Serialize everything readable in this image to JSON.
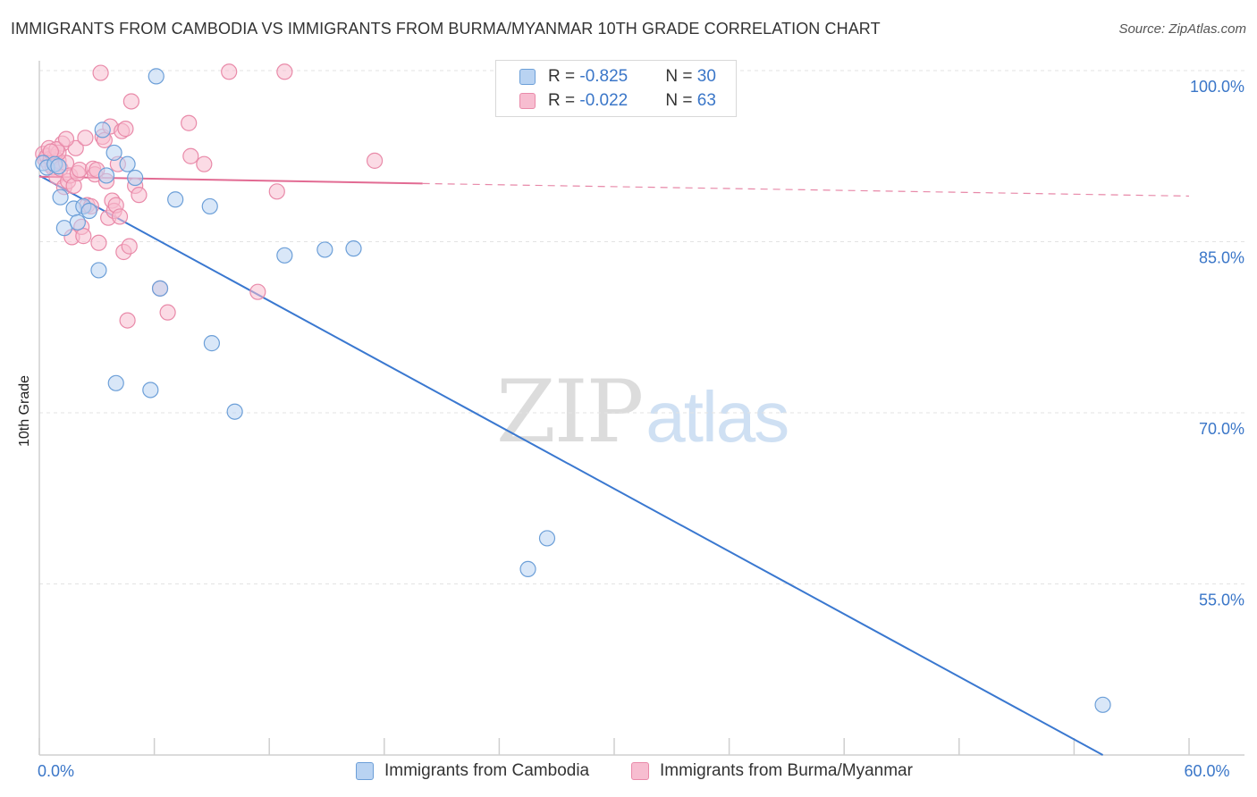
{
  "title": "IMMIGRANTS FROM CAMBODIA VS IMMIGRANTS FROM BURMA/MYANMAR 10TH GRADE CORRELATION CHART",
  "source": "Source: ZipAtlas.com",
  "watermark": {
    "zip": "ZIP",
    "atlas": "atlas"
  },
  "legend": {
    "rows": [
      {
        "r_label": "R = ",
        "r_value": "-0.825",
        "n_label": "N = ",
        "n_value": "30"
      },
      {
        "r_label": "R = ",
        "r_value": "-0.022",
        "n_label": "N = ",
        "n_value": "63"
      }
    ]
  },
  "colors": {
    "cambodia_fill": "#b9d3f2",
    "cambodia_stroke": "#6c9fd8",
    "cambodia_line": "#3a78d0",
    "burma_fill": "#f7bdd0",
    "burma_stroke": "#e98aa9",
    "burma_line": "#e26b93",
    "axis_label": "#3a76c8",
    "grid": "#e3e3e3"
  },
  "chart_data": {
    "type": "scatter",
    "title": "IMMIGRANTS FROM CAMBODIA VS IMMIGRANTS FROM BURMA/MYANMAR 10TH GRADE CORRELATION CHART",
    "xlabel": "",
    "ylabel": "10th Grade",
    "xlim": [
      0,
      60
    ],
    "ylim": [
      40,
      100
    ],
    "x_tick_labels": [
      {
        "value": 0,
        "label": "0.0%"
      },
      {
        "value": 60,
        "label": "60.0%"
      }
    ],
    "y_tick_labels": [
      {
        "value": 100,
        "label": "100.0%"
      },
      {
        "value": 85,
        "label": "85.0%"
      },
      {
        "value": 70,
        "label": "70.0%"
      },
      {
        "value": 55,
        "label": "55.0%"
      }
    ],
    "series": [
      {
        "name": "Immigrants from Cambodia",
        "color": "#6c9fd8",
        "points": [
          [
            0.2,
            91.9
          ],
          [
            0.4,
            91.5
          ],
          [
            0.8,
            91.8
          ],
          [
            1.0,
            91.6
          ],
          [
            1.1,
            88.9
          ],
          [
            1.3,
            86.2
          ],
          [
            1.8,
            87.9
          ],
          [
            2.0,
            86.7
          ],
          [
            2.3,
            88.1
          ],
          [
            2.6,
            87.7
          ],
          [
            3.1,
            82.5
          ],
          [
            3.3,
            94.8
          ],
          [
            3.5,
            90.8
          ],
          [
            3.9,
            92.8
          ],
          [
            4.6,
            91.8
          ],
          [
            5.0,
            90.6
          ],
          [
            6.1,
            99.5
          ],
          [
            6.3,
            80.9
          ],
          [
            7.1,
            88.7
          ],
          [
            8.9,
            88.1
          ],
          [
            9.0,
            76.1
          ],
          [
            12.8,
            83.8
          ],
          [
            14.9,
            84.3
          ],
          [
            16.4,
            84.4
          ],
          [
            4.0,
            72.6
          ],
          [
            5.8,
            72.0
          ],
          [
            10.2,
            70.1
          ],
          [
            25.5,
            56.3
          ],
          [
            26.5,
            59.0
          ],
          [
            55.5,
            44.4
          ]
        ]
      },
      {
        "name": "Immigrants from Burma/Myanmar",
        "color": "#e98aa9",
        "points": [
          [
            0.2,
            92.7
          ],
          [
            0.3,
            92.2
          ],
          [
            0.4,
            92.5
          ],
          [
            0.5,
            91.8
          ],
          [
            0.6,
            92.3
          ],
          [
            0.7,
            91.5
          ],
          [
            0.8,
            92.4
          ],
          [
            0.9,
            90.7
          ],
          [
            1.0,
            92.1
          ],
          [
            1.1,
            91.4
          ],
          [
            1.2,
            93.6
          ],
          [
            1.3,
            89.8
          ],
          [
            1.4,
            91.9
          ],
          [
            1.5,
            90.3
          ],
          [
            1.6,
            90.8
          ],
          [
            1.7,
            85.4
          ],
          [
            1.8,
            89.9
          ],
          [
            1.9,
            93.2
          ],
          [
            2.0,
            91.0
          ],
          [
            2.1,
            91.3
          ],
          [
            2.2,
            86.3
          ],
          [
            2.4,
            94.1
          ],
          [
            2.5,
            88.2
          ],
          [
            2.7,
            88.1
          ],
          [
            2.8,
            91.4
          ],
          [
            2.9,
            90.9
          ],
          [
            3.0,
            91.3
          ],
          [
            3.1,
            84.9
          ],
          [
            3.2,
            99.8
          ],
          [
            3.3,
            94.2
          ],
          [
            3.4,
            93.9
          ],
          [
            3.5,
            90.3
          ],
          [
            3.6,
            87.1
          ],
          [
            3.7,
            95.1
          ],
          [
            3.8,
            88.6
          ],
          [
            3.9,
            87.7
          ],
          [
            4.0,
            88.2
          ],
          [
            4.1,
            91.8
          ],
          [
            4.2,
            87.2
          ],
          [
            4.3,
            94.7
          ],
          [
            4.4,
            84.1
          ],
          [
            4.5,
            94.9
          ],
          [
            4.6,
            78.1
          ],
          [
            4.7,
            84.6
          ],
          [
            4.8,
            97.3
          ],
          [
            5.0,
            89.9
          ],
          [
            5.2,
            89.1
          ],
          [
            6.3,
            80.9
          ],
          [
            6.7,
            78.8
          ],
          [
            7.8,
            95.4
          ],
          [
            7.9,
            92.5
          ],
          [
            8.6,
            91.8
          ],
          [
            9.9,
            99.9
          ],
          [
            11.4,
            80.6
          ],
          [
            12.4,
            89.4
          ],
          [
            12.8,
            99.9
          ],
          [
            17.5,
            92.1
          ],
          [
            0.5,
            93.2
          ],
          [
            1.0,
            92.8
          ],
          [
            2.3,
            85.5
          ],
          [
            0.9,
            93.1
          ],
          [
            1.4,
            94.0
          ],
          [
            0.6,
            92.9
          ]
        ]
      }
    ],
    "trend_lines": [
      {
        "series": "Immigrants from Cambodia",
        "x": [
          0,
          55.5
        ],
        "y": [
          90.8,
          40.0
        ],
        "style": "solid"
      },
      {
        "series": "Immigrants from Burma/Myanmar",
        "x": [
          0,
          20
        ],
        "y": [
          90.7,
          90.1
        ],
        "style": "solid"
      },
      {
        "series": "Immigrants from Burma/Myanmar",
        "x": [
          20,
          60
        ],
        "y": [
          90.1,
          89.0
        ],
        "style": "dashed"
      }
    ]
  }
}
